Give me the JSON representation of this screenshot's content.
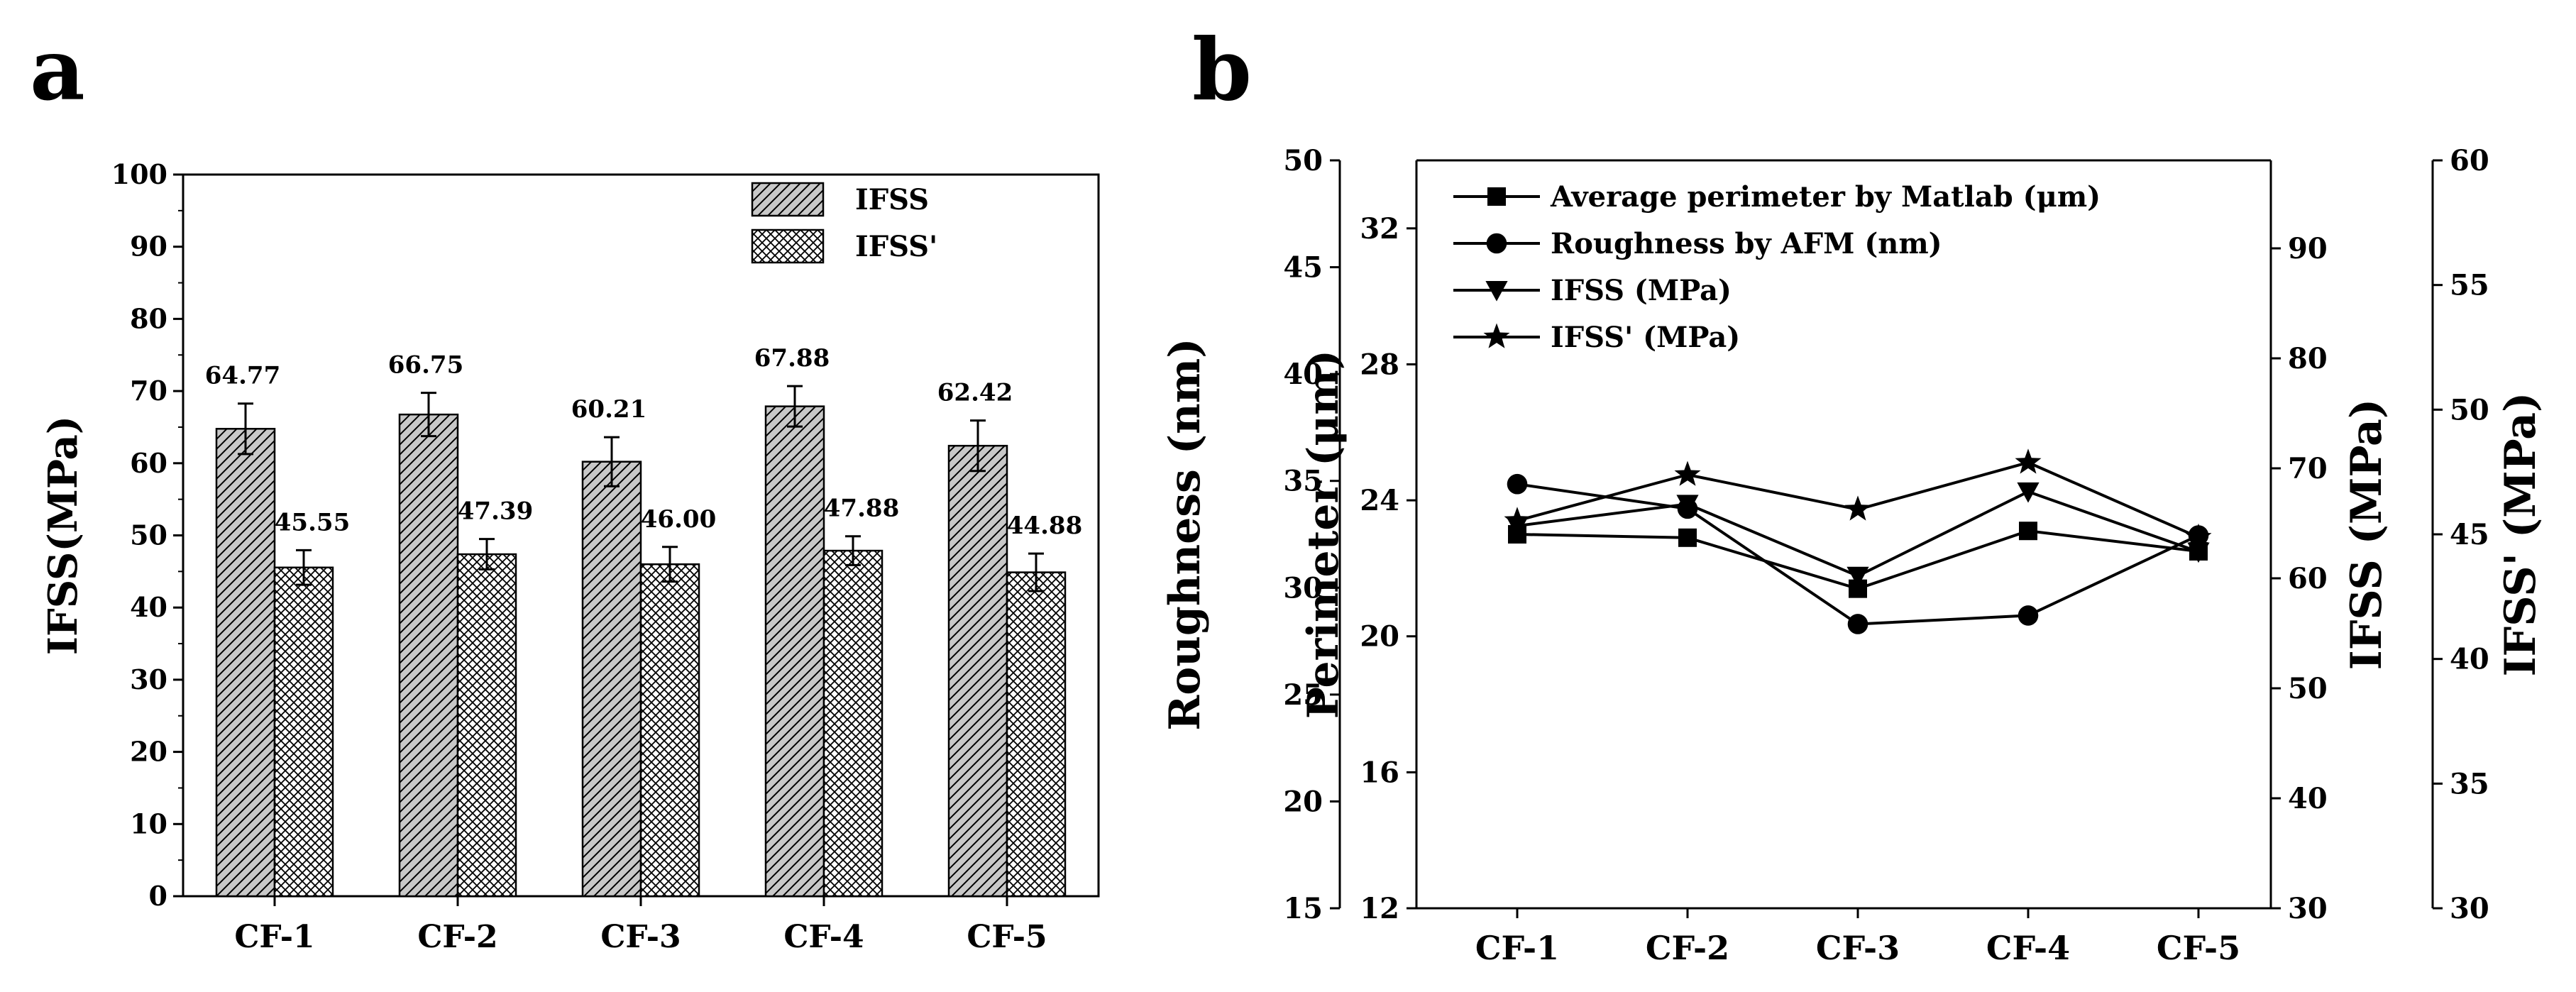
{
  "figure": {
    "panel_a_label": "a",
    "panel_b_label": "b"
  },
  "chart_data": [
    {
      "type": "bar",
      "panel": "a",
      "categories": [
        "CF-1",
        "CF-2",
        "CF-3",
        "CF-4",
        "CF-5"
      ],
      "series": [
        {
          "name": "IFSS",
          "values": [
            64.77,
            66.75,
            60.21,
            67.88,
            62.42
          ],
          "errors": [
            3.5,
            3.0,
            3.4,
            2.8,
            3.5
          ],
          "labels": [
            "64.77",
            "66.75",
            "60.21",
            "67.88",
            "62.42"
          ],
          "pattern": "diagonal-hatch",
          "fill": "#c8c8c8"
        },
        {
          "name": "IFSS'",
          "values": [
            45.55,
            47.39,
            46.0,
            47.88,
            44.88
          ],
          "errors": [
            2.4,
            2.1,
            2.4,
            2.0,
            2.6
          ],
          "labels": [
            "45.55",
            "47.39",
            "46.00",
            "47.88",
            "44.88"
          ],
          "pattern": "crosshatch",
          "fill": "#ffffff"
        }
      ],
      "ylabel": "IFSS(MPa)",
      "ylim": [
        0,
        100
      ],
      "yticks": [
        0,
        10,
        20,
        30,
        40,
        50,
        60,
        70,
        80,
        90,
        100
      ],
      "legend": "top-right",
      "grid": false
    },
    {
      "type": "line",
      "panel": "b",
      "categories": [
        "CF-1",
        "CF-2",
        "CF-3",
        "CF-4",
        "CF-5"
      ],
      "series": [
        {
          "name": "Average perimeter by Matlab (μm)",
          "axis": "Perimeter (μm)",
          "marker": "square",
          "values": [
            23.0,
            22.9,
            21.4,
            23.1,
            22.5
          ]
        },
        {
          "name": "Roughness by AFM (nm)",
          "axis": "Roughness (nm)",
          "marker": "circle",
          "values": [
            34.85,
            33.7,
            28.3,
            28.7,
            32.45
          ]
        },
        {
          "name": "IFSS (MPa)",
          "axis": "IFSS (MPa)",
          "marker": "triangle-down",
          "values": [
            64.77,
            66.75,
            60.21,
            67.88,
            62.42
          ]
        },
        {
          "name": "IFSS' (MPa)",
          "axis": "IFSS' (MPa)",
          "marker": "star",
          "values": [
            45.55,
            47.39,
            46.0,
            47.88,
            44.88
          ]
        }
      ],
      "axes": [
        {
          "label": "Roughness (nm)",
          "side": "left-outer",
          "range": [
            15,
            50
          ],
          "ticks": [
            15,
            20,
            25,
            30,
            35,
            40,
            45,
            50
          ]
        },
        {
          "label": "Perimeter (μm)",
          "side": "left-inner",
          "range": [
            12,
            34
          ],
          "ticks": [
            12,
            16,
            20,
            24,
            28,
            32
          ]
        },
        {
          "label": "IFSS (MPa)",
          "side": "right-inner",
          "range": [
            30,
            98
          ],
          "ticks": [
            30,
            40,
            50,
            60,
            70,
            80,
            90
          ]
        },
        {
          "label": "IFSS' (MPa)",
          "side": "right-outer",
          "range": [
            30,
            60
          ],
          "ticks": [
            30,
            35,
            40,
            45,
            50,
            55,
            60
          ]
        }
      ],
      "legend": "top-left",
      "grid": false
    }
  ]
}
